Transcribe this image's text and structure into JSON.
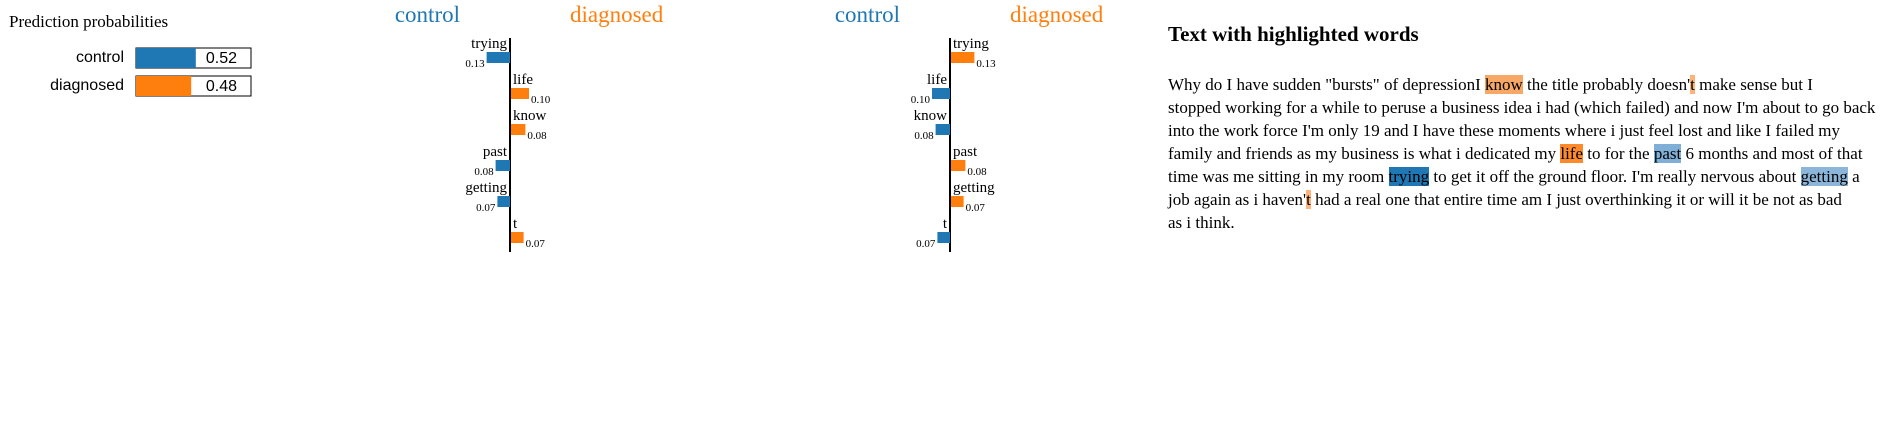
{
  "colors": {
    "control": "#1f77b4",
    "diagnosed": "#ff7f0e"
  },
  "proba": {
    "title": "Prediction probabilities",
    "items": [
      {
        "label": "control",
        "value": 0.52,
        "text": "0.52",
        "color": "#1f77b4"
      },
      {
        "label": "diagnosed",
        "value": 0.48,
        "text": "0.48",
        "color": "#ff7f0e"
      }
    ]
  },
  "chart_data": [
    {
      "type": "bar",
      "orientation": "horizontal",
      "left_label": "control",
      "right_label": "diagnosed",
      "categories": [
        "trying",
        "life",
        "know",
        "past",
        "getting",
        "t"
      ],
      "values": [
        -0.13,
        0.1,
        0.08,
        -0.08,
        -0.07,
        0.07
      ],
      "value_labels": [
        "0.13",
        "0.10",
        "0.08",
        "0.08",
        "0.07",
        "0.07"
      ]
    },
    {
      "type": "bar",
      "orientation": "horizontal",
      "left_label": "control",
      "right_label": "diagnosed",
      "categories": [
        "trying",
        "life",
        "know",
        "past",
        "getting",
        "t"
      ],
      "values": [
        0.13,
        -0.1,
        -0.08,
        0.08,
        0.07,
        -0.07
      ],
      "value_labels": [
        "0.13",
        "0.10",
        "0.08",
        "0.08",
        "0.07",
        "0.07"
      ]
    }
  ],
  "highlight": {
    "title": "Text with highlighted words",
    "segments": [
      {
        "text": "Why do I have sudden \"bursts\" of depressionI "
      },
      {
        "text": "know",
        "bg": "#f7a866"
      },
      {
        "text": " the title probably doesn'"
      },
      {
        "text": "t",
        "bg": "#ffb27a"
      },
      {
        "text": " make sense but I",
        "br": true
      },
      {
        "text": "stopped working for a while to peruse a business idea i had (which failed) and now I'm about to go back",
        "br": true
      },
      {
        "text": "into the work force I'm only 19 and I have these moments where i just feel lost and like I failed my",
        "br": true
      },
      {
        "text": "family and friends as my business is what i dedicated my "
      },
      {
        "text": "life",
        "bg": "#ff8a2b"
      },
      {
        "text": " to for the "
      },
      {
        "text": "past",
        "bg": "#7fafd6"
      },
      {
        "text": " 6 months and most of that",
        "br": true
      },
      {
        "text": "time was me sitting in my room "
      },
      {
        "text": "trying",
        "bg": "#1f77b4"
      },
      {
        "text": " to get it off the ground floor. I'm really nervous about "
      },
      {
        "text": "getting",
        "bg": "#8bb6da"
      },
      {
        "text": " a",
        "br": true
      },
      {
        "text": "job again as i haven'"
      },
      {
        "text": "t",
        "bg": "#ffb27a"
      },
      {
        "text": " had a real one that entire time am I just overthinking it or will it be not as bad",
        "br": true
      },
      {
        "text": "as i think."
      }
    ]
  }
}
